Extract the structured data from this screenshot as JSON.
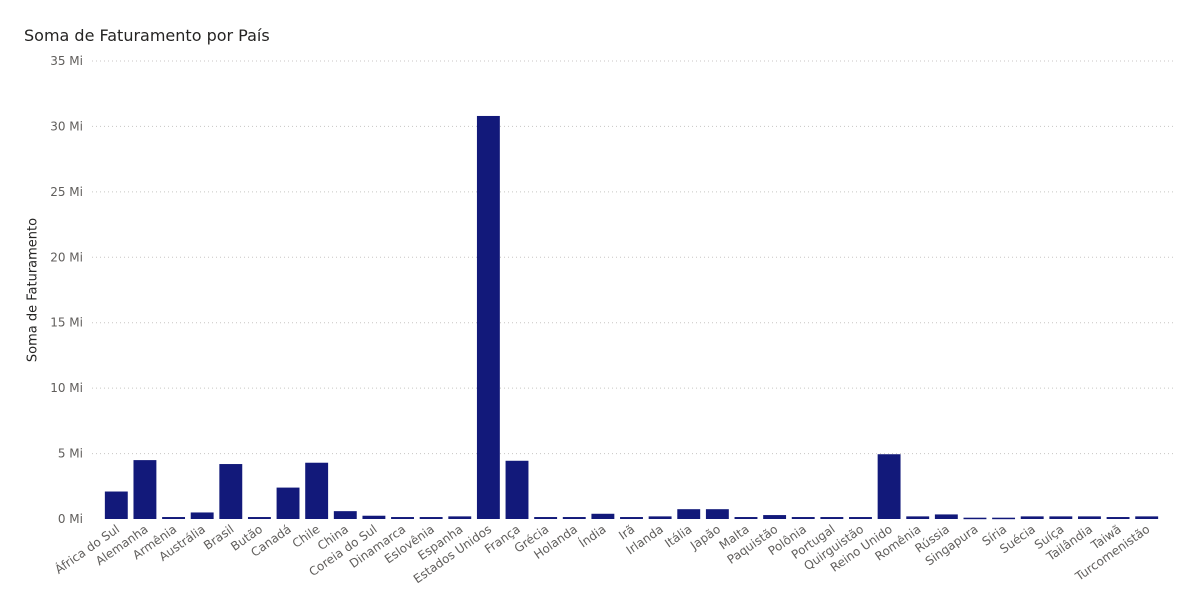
{
  "chart_data": {
    "type": "bar",
    "title": "Soma de Faturamento por País",
    "xlabel": "",
    "ylabel": "Soma de Faturamento",
    "ylim": [
      0,
      35
    ],
    "y_ticks": [
      "0 Mi",
      "5 Mi",
      "10 Mi",
      "15 Mi",
      "20 Mi",
      "25 Mi",
      "30 Mi",
      "35 Mi"
    ],
    "y_tick_values": [
      0,
      5,
      10,
      15,
      20,
      25,
      30,
      35
    ],
    "grid": true,
    "bar_color": "#12197A",
    "categories": [
      "África do Sul",
      "Alemanha",
      "Armênia",
      "Austrália",
      "Brasil",
      "Butão",
      "Canadá",
      "Chile",
      "China",
      "Coreia do Sul",
      "Dinamarca",
      "Eslovênia",
      "Espanha",
      "Estados Unidos",
      "França",
      "Grécia",
      "Holanda",
      "Índia",
      "Irã",
      "Irlanda",
      "Itália",
      "Japão",
      "Malta",
      "Paquistão",
      "Polônia",
      "Portugal",
      "Quirguistão",
      "Reino Unido",
      "Romênia",
      "Rússia",
      "Singapura",
      "Síria",
      "Suécia",
      "Suíça",
      "Tailândia",
      "Taiwã",
      "Turcomenistão"
    ],
    "values": [
      2.1,
      4.5,
      0.15,
      0.5,
      4.2,
      0.15,
      2.4,
      4.3,
      0.6,
      0.25,
      0.15,
      0.15,
      0.2,
      30.8,
      4.45,
      0.15,
      0.15,
      0.4,
      0.15,
      0.2,
      0.75,
      0.75,
      0.15,
      0.3,
      0.15,
      0.15,
      0.15,
      4.95,
      0.2,
      0.35,
      0.1,
      0.1,
      0.2,
      0.2,
      0.2,
      0.15,
      0.2
    ]
  }
}
